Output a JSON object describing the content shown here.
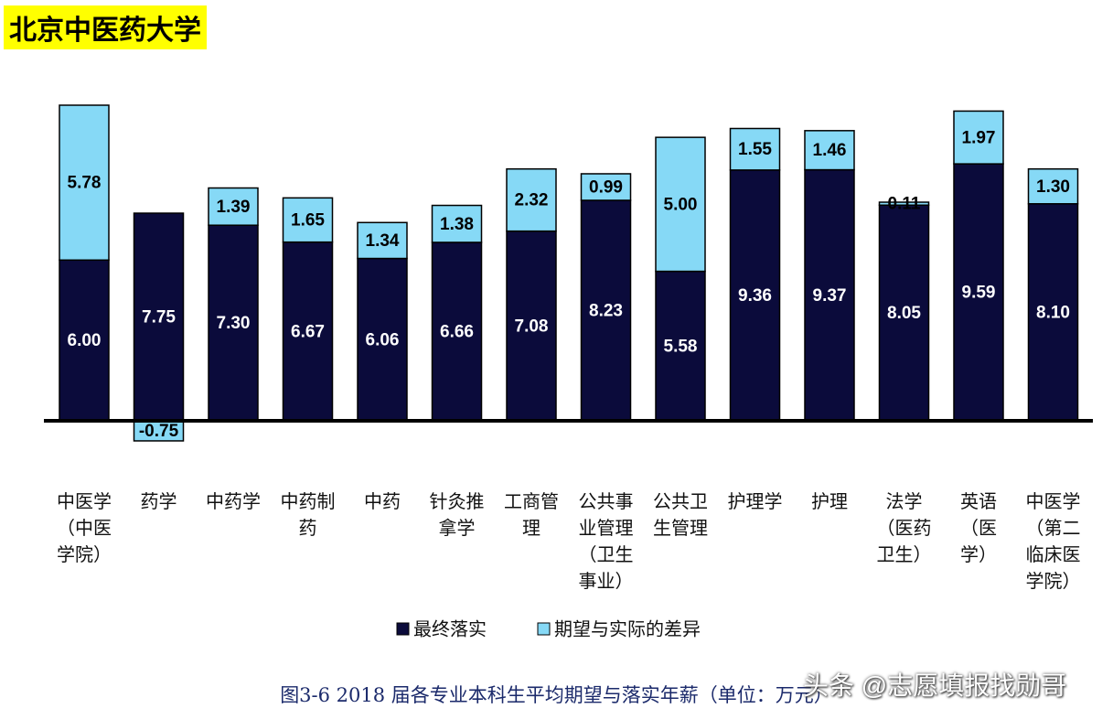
{
  "header": {
    "title": "北京中医药大学"
  },
  "chart_data": {
    "type": "stacked-bar",
    "categories": [
      "中医学\n（中医\n学院）",
      "药学",
      "中药学",
      "中药制\n药",
      "中药",
      "针灸推\n拿学",
      "工商管\n理",
      "公共事\n业管理\n（卫生\n事业）",
      "公共卫\n生管理",
      "护理学",
      "护理",
      "法学\n（医药\n卫生）",
      "英语\n（医\n学）",
      "中医学\n（第二\n临床医\n学院）"
    ],
    "series": [
      {
        "name": "最终落实",
        "color": "#0b0b3b",
        "values": [
          6.0,
          7.75,
          7.3,
          6.67,
          6.06,
          6.66,
          7.08,
          8.23,
          5.58,
          9.36,
          9.37,
          8.05,
          9.59,
          8.1
        ],
        "value_labels": [
          "6.00",
          "7.75",
          "7.30",
          "6.67",
          "6.06",
          "6.66",
          "7.08",
          "8.23",
          "5.58",
          "9.36",
          "9.37",
          "8.05",
          "9.59",
          "8.10"
        ]
      },
      {
        "name": "期望与实际的差异",
        "color": "#86d9f6",
        "values": [
          5.78,
          -0.75,
          1.39,
          1.65,
          1.34,
          1.38,
          2.32,
          0.99,
          5.0,
          1.55,
          1.46,
          0.11,
          1.97,
          1.3
        ],
        "value_labels": [
          "5.78",
          "-0.75",
          "1.39",
          "1.65",
          "1.34",
          "1.38",
          "2.32",
          "0.99",
          "5.00",
          "1.55",
          "1.46",
          "0.11",
          "1.97",
          "1.30"
        ]
      }
    ],
    "caption": "图3-6  2018 届各专业本科生平均期望与落实年薪（单位：万元）"
  },
  "watermark": "头条 @志愿填报找勋哥"
}
